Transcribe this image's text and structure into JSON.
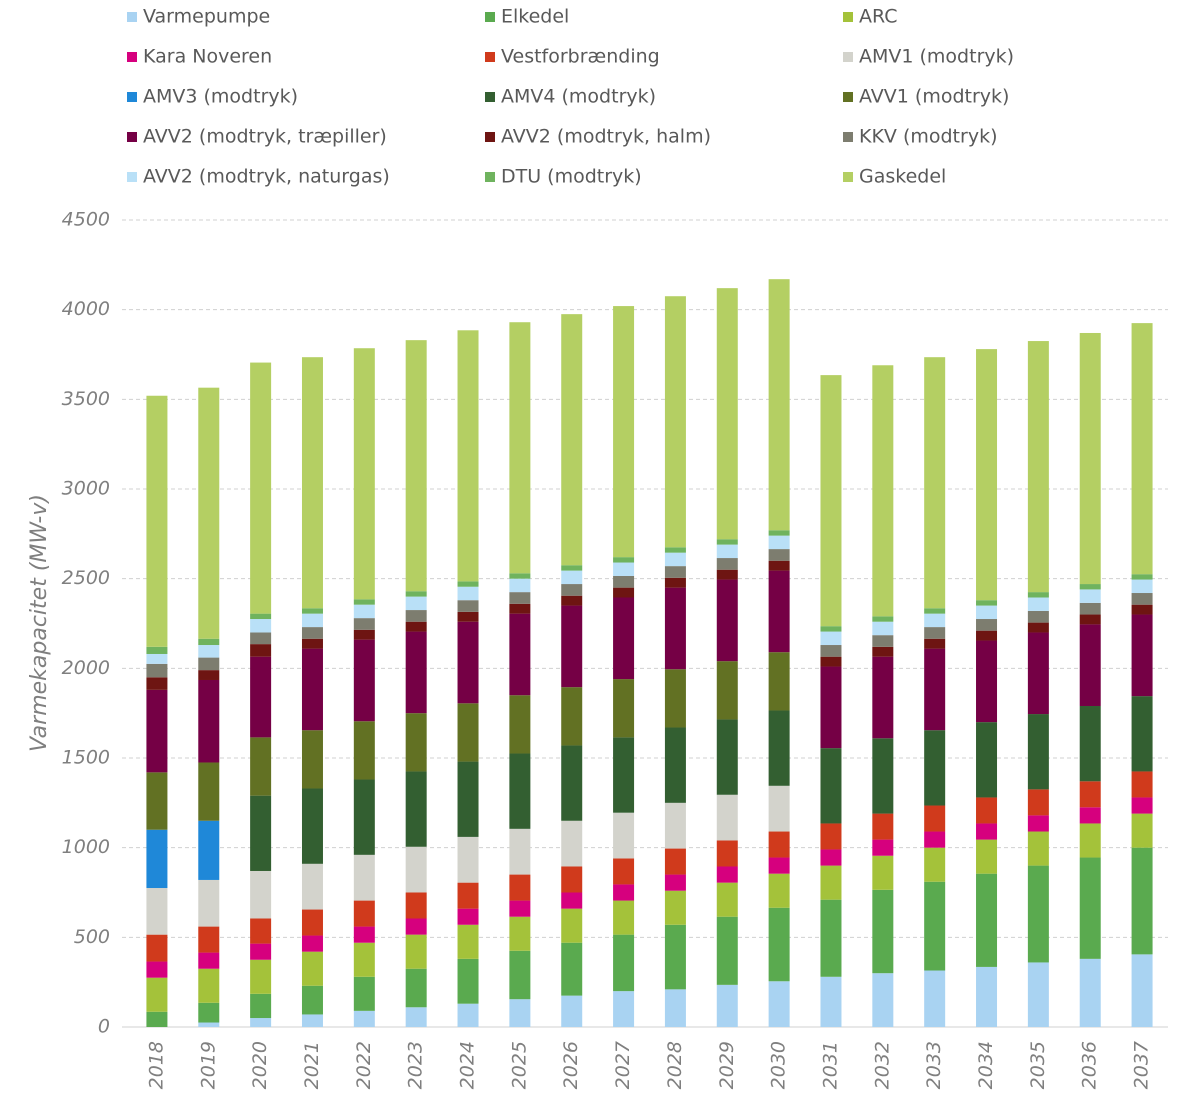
{
  "chart_data": {
    "type": "stacked_bar",
    "y_label": "Varmekapacitet (MW-v)",
    "categories": [
      "2018",
      "2019",
      "2020",
      "2021",
      "2022",
      "2023",
      "2024",
      "2025",
      "2026",
      "2027",
      "2028",
      "2029",
      "2030",
      "2031",
      "2032",
      "2033",
      "2034",
      "2035",
      "2036",
      "2037"
    ],
    "ylim": [
      0,
      4500
    ],
    "yticks": [
      0,
      500,
      1000,
      1500,
      2000,
      2500,
      3000,
      3500,
      4000,
      4500
    ],
    "grid": true,
    "legend": "top",
    "series": [
      {
        "name": "Varmepumpe",
        "color": "#a9d3f2",
        "values": [
          0,
          25,
          50,
          70,
          90,
          110,
          130,
          155,
          175,
          200,
          210,
          235,
          255,
          280,
          300,
          315,
          335,
          360,
          380,
          405
        ]
      },
      {
        "name": "Elkedel",
        "color": "#5aaa4f",
        "values": [
          85,
          110,
          135,
          160,
          190,
          215,
          250,
          270,
          295,
          315,
          360,
          380,
          410,
          430,
          465,
          495,
          520,
          540,
          565,
          595
        ]
      },
      {
        "name": "ARC",
        "color": "#a4c23a",
        "values": [
          190,
          190,
          190,
          190,
          190,
          190,
          190,
          190,
          190,
          190,
          190,
          190,
          190,
          190,
          190,
          190,
          190,
          190,
          190,
          190
        ]
      },
      {
        "name": "Kara Noveren",
        "color": "#d6007e",
        "values": [
          90,
          90,
          90,
          90,
          90,
          90,
          90,
          90,
          90,
          90,
          90,
          90,
          90,
          90,
          90,
          90,
          90,
          90,
          90,
          90
        ]
      },
      {
        "name": "Vestforbrænding",
        "color": "#d03a1c",
        "values": [
          150,
          145,
          140,
          145,
          145,
          145,
          145,
          145,
          145,
          145,
          145,
          145,
          145,
          145,
          145,
          145,
          145,
          145,
          145,
          145
        ]
      },
      {
        "name": "AMV1 (modtryk)",
        "color": "#d3d3cc",
        "values": [
          260,
          260,
          265,
          255,
          255,
          255,
          255,
          255,
          255,
          255,
          255,
          255,
          255,
          0,
          0,
          0,
          0,
          0,
          0,
          0
        ]
      },
      {
        "name": "AMV3 (modtryk)",
        "color": "#1f88d8",
        "values": [
          325,
          330,
          0,
          0,
          0,
          0,
          0,
          0,
          0,
          0,
          0,
          0,
          0,
          0,
          0,
          0,
          0,
          0,
          0,
          0
        ]
      },
      {
        "name": "AMV4 (modtryk)",
        "color": "#335f31",
        "values": [
          0,
          0,
          420,
          420,
          420,
          420,
          420,
          420,
          420,
          420,
          420,
          420,
          420,
          420,
          420,
          420,
          420,
          420,
          420,
          420
        ]
      },
      {
        "name": "AVV1 (modtryk)",
        "color": "#627123",
        "values": [
          320,
          325,
          325,
          325,
          325,
          325,
          325,
          325,
          325,
          325,
          325,
          325,
          325,
          0,
          0,
          0,
          0,
          0,
          0,
          0
        ]
      },
      {
        "name": "AVV2 (modtryk, træpiller)",
        "color": "#750045",
        "values": [
          460,
          460,
          450,
          455,
          455,
          455,
          455,
          455,
          455,
          455,
          455,
          455,
          455,
          455,
          455,
          455,
          455,
          455,
          455,
          455
        ]
      },
      {
        "name": "AVV2 (modtryk, halm)",
        "color": "#6e1512",
        "values": [
          70,
          55,
          70,
          55,
          55,
          55,
          55,
          55,
          55,
          55,
          55,
          55,
          55,
          55,
          55,
          55,
          55,
          55,
          55,
          55
        ]
      },
      {
        "name": "KKV (modtryk)",
        "color": "#7d7d6f",
        "values": [
          75,
          70,
          65,
          65,
          65,
          65,
          65,
          65,
          65,
          65,
          65,
          65,
          65,
          65,
          65,
          65,
          65,
          65,
          65,
          65
        ]
      },
      {
        "name": "AVV2 (modtryk, naturgas)",
        "color": "#b9e0f7",
        "values": [
          55,
          70,
          75,
          75,
          75,
          75,
          75,
          75,
          75,
          75,
          75,
          75,
          75,
          75,
          75,
          75,
          75,
          75,
          75,
          75
        ]
      },
      {
        "name": "DTU (modtryk)",
        "color": "#6fb35e",
        "values": [
          40,
          35,
          30,
          30,
          30,
          30,
          30,
          30,
          30,
          30,
          30,
          30,
          30,
          30,
          30,
          30,
          30,
          30,
          30,
          30
        ]
      },
      {
        "name": "Gaskedel",
        "color": "#b4cf63",
        "values": [
          1400,
          1400,
          1400,
          1400,
          1400,
          1400,
          1400,
          1400,
          1400,
          1400,
          1400,
          1400,
          1400,
          1400,
          1400,
          1400,
          1400,
          1400,
          1400,
          1400
        ]
      }
    ]
  }
}
